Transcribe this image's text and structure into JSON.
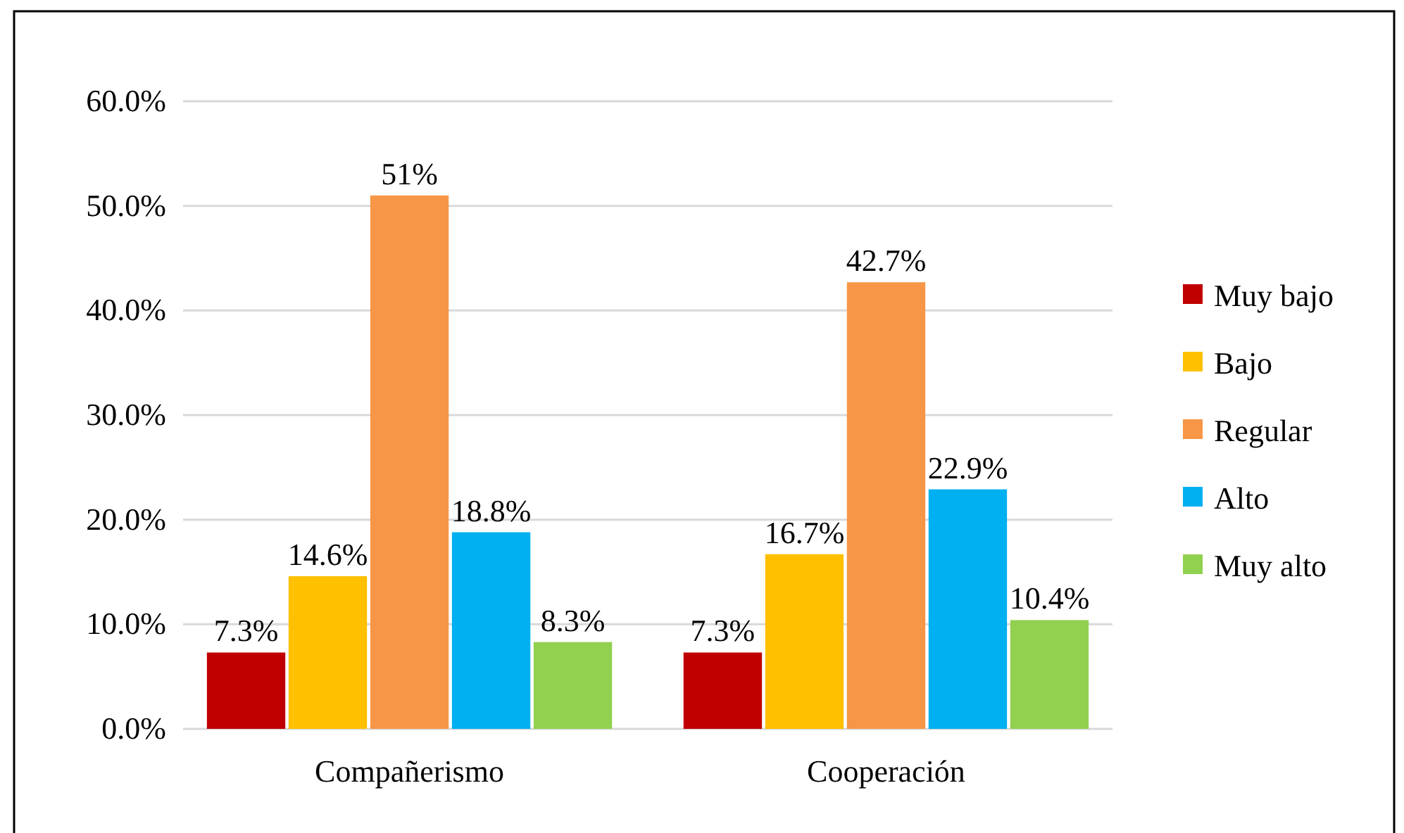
{
  "chart_data": {
    "type": "bar",
    "categories": [
      "Compañerismo",
      "Cooperación"
    ],
    "series": [
      {
        "name": "Muy bajo",
        "color": "#c00000",
        "values": [
          7.3,
          7.3
        ],
        "value_labels": [
          "7.3%",
          "7.3%"
        ]
      },
      {
        "name": "Bajo",
        "color": "#ffc000",
        "values": [
          14.6,
          16.7
        ],
        "value_labels": [
          "14.6%",
          "16.7%"
        ]
      },
      {
        "name": "Regular",
        "color": "#f79646",
        "values": [
          51,
          42.7
        ],
        "value_labels": [
          "51%",
          "42.7%"
        ]
      },
      {
        "name": "Alto",
        "color": "#00b0f0",
        "values": [
          18.8,
          22.9
        ],
        "value_labels": [
          "18.8%",
          "22.9%"
        ]
      },
      {
        "name": "Muy alto",
        "color": "#92d050",
        "values": [
          8.3,
          10.4
        ],
        "value_labels": [
          "8.3%",
          "10.4%"
        ]
      }
    ],
    "ylim": [
      0,
      60
    ],
    "yticks": [
      {
        "value": 0,
        "label": "0.0%"
      },
      {
        "value": 10,
        "label": "10.0%"
      },
      {
        "value": 20,
        "label": "20.0%"
      },
      {
        "value": 30,
        "label": "30.0%"
      },
      {
        "value": 40,
        "label": "40.0%"
      },
      {
        "value": 50,
        "label": "50.0%"
      },
      {
        "value": 60,
        "label": "60.0%"
      }
    ],
    "grid": "y",
    "legend": "right"
  }
}
